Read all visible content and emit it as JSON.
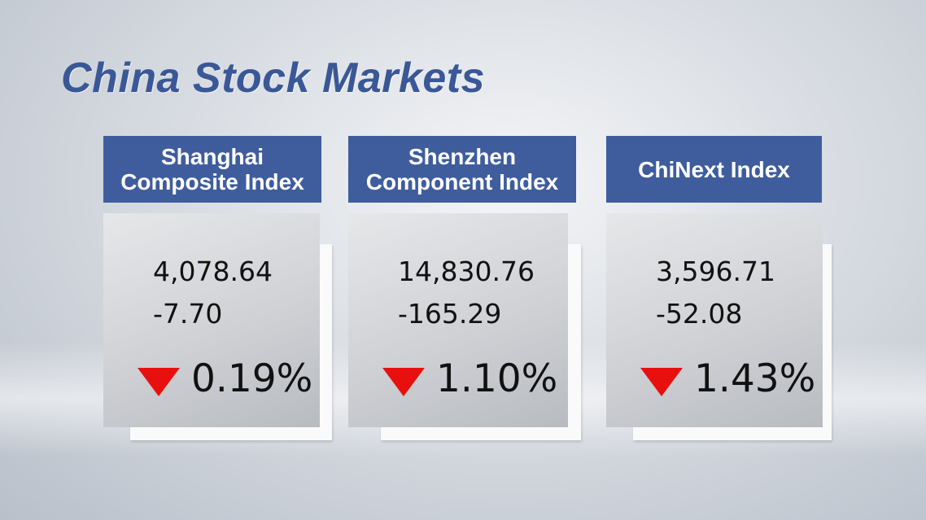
{
  "title": "China Stock Markets",
  "cards": [
    {
      "header": [
        "Shanghai",
        "Composite Index"
      ],
      "value": "4,078.64",
      "change": "-7.70",
      "percent": "0.19%"
    },
    {
      "header": [
        "Shenzhen",
        "Component Index"
      ],
      "value": "14,830.76",
      "change": "-165.29",
      "percent": "1.10%"
    },
    {
      "header": [
        "ChiNext Index"
      ],
      "value": "3,596.71",
      "change": "-52.08",
      "percent": "1.43%"
    }
  ]
}
